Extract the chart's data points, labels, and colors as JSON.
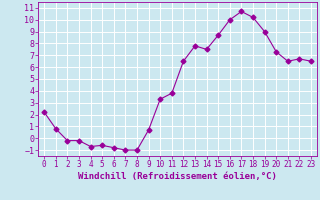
{
  "x": [
    0,
    1,
    2,
    3,
    4,
    5,
    6,
    7,
    8,
    9,
    10,
    11,
    12,
    13,
    14,
    15,
    16,
    17,
    18,
    19,
    20,
    21,
    22,
    23
  ],
  "y": [
    2.2,
    0.8,
    -0.2,
    -0.2,
    -0.7,
    -0.6,
    -0.8,
    -1.0,
    -1.0,
    0.7,
    3.3,
    3.8,
    6.5,
    7.8,
    7.5,
    8.7,
    10.0,
    10.7,
    10.2,
    9.0,
    7.3,
    6.5,
    6.7,
    6.5
  ],
  "line_color": "#990099",
  "marker": "D",
  "markersize": 2.5,
  "linewidth": 0.8,
  "bg_color": "#cce8f0",
  "grid_color": "#ffffff",
  "xlabel": "Windchill (Refroidissement éolien,°C)",
  "ylim": [
    -1.5,
    11.5
  ],
  "xlim": [
    -0.5,
    23.5
  ],
  "yticks": [
    -1,
    0,
    1,
    2,
    3,
    4,
    5,
    6,
    7,
    8,
    9,
    10,
    11
  ],
  "xticks": [
    0,
    1,
    2,
    3,
    4,
    5,
    6,
    7,
    8,
    9,
    10,
    11,
    12,
    13,
    14,
    15,
    16,
    17,
    18,
    19,
    20,
    21,
    22,
    23
  ],
  "tick_color": "#990099",
  "label_color": "#990099",
  "xlabel_fontsize": 6.5,
  "ytick_fontsize": 6,
  "xtick_fontsize": 5.5
}
